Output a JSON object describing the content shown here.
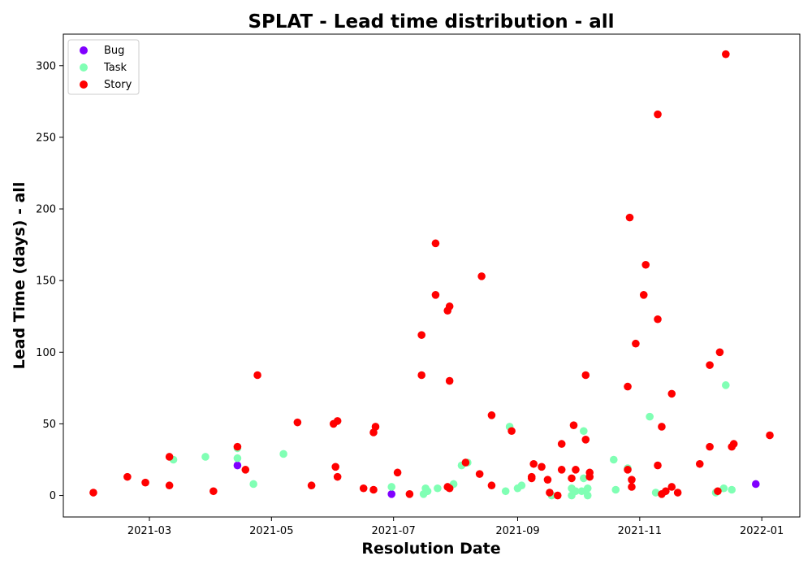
{
  "chart_data": {
    "type": "scatter",
    "title": "SPLAT - Lead time distribution - all",
    "xlabel": "Resolution Date",
    "ylabel": "Lead Time (days) - all",
    "x_ticks": [
      "2021-03",
      "2021-05",
      "2021-07",
      "2021-09",
      "2021-11",
      "2022-01"
    ],
    "y_ticks": [
      0,
      50,
      100,
      150,
      200,
      250,
      300
    ],
    "xlim": [
      "2021-01-17",
      "2022-01-20"
    ],
    "ylim": [
      -15,
      322
    ],
    "grid": false,
    "legend_position": "top-left",
    "series": [
      {
        "name": "Bug",
        "color": "#8000ff",
        "points": [
          [
            "2021-04-14",
            21
          ],
          [
            "2021-06-30",
            1
          ],
          [
            "2021-12-29",
            8
          ]
        ]
      },
      {
        "name": "Task",
        "color": "#80ffb4",
        "points": [
          [
            "2021-03-13",
            25
          ],
          [
            "2021-03-29",
            27
          ],
          [
            "2021-04-14",
            26
          ],
          [
            "2021-04-14",
            33
          ],
          [
            "2021-04-22",
            8
          ],
          [
            "2021-05-07",
            29
          ],
          [
            "2021-06-30",
            6
          ],
          [
            "2021-07-16",
            1
          ],
          [
            "2021-07-17",
            5
          ],
          [
            "2021-07-18",
            3
          ],
          [
            "2021-07-23",
            5
          ],
          [
            "2021-07-31",
            8
          ],
          [
            "2021-08-04",
            21
          ],
          [
            "2021-08-07",
            23
          ],
          [
            "2021-08-26",
            3
          ],
          [
            "2021-08-28",
            48
          ],
          [
            "2021-09-01",
            5
          ],
          [
            "2021-09-03",
            7
          ],
          [
            "2021-09-18",
            0
          ],
          [
            "2021-09-28",
            0
          ],
          [
            "2021-09-28",
            5
          ],
          [
            "2021-09-30",
            3
          ],
          [
            "2021-10-03",
            3
          ],
          [
            "2021-10-04",
            45
          ],
          [
            "2021-10-04",
            12
          ],
          [
            "2021-10-05",
            3
          ],
          [
            "2021-10-06",
            0
          ],
          [
            "2021-10-06",
            5
          ],
          [
            "2021-10-19",
            25
          ],
          [
            "2021-10-20",
            4
          ],
          [
            "2021-10-26",
            19
          ],
          [
            "2021-11-06",
            55
          ],
          [
            "2021-11-09",
            2
          ],
          [
            "2021-12-09",
            2
          ],
          [
            "2021-12-13",
            5
          ],
          [
            "2021-12-14",
            77
          ],
          [
            "2021-12-17",
            4
          ]
        ]
      },
      {
        "name": "Story",
        "color": "#ff0000",
        "points": [
          [
            "2021-02-01",
            2
          ],
          [
            "2021-02-18",
            13
          ],
          [
            "2021-02-27",
            9
          ],
          [
            "2021-03-11",
            7
          ],
          [
            "2021-03-11",
            27
          ],
          [
            "2021-04-02",
            3
          ],
          [
            "2021-04-14",
            34
          ],
          [
            "2021-04-18",
            18
          ],
          [
            "2021-04-24",
            84
          ],
          [
            "2021-05-14",
            51
          ],
          [
            "2021-05-21",
            7
          ],
          [
            "2021-06-01",
            50
          ],
          [
            "2021-06-02",
            20
          ],
          [
            "2021-06-03",
            13
          ],
          [
            "2021-06-03",
            52
          ],
          [
            "2021-06-16",
            5
          ],
          [
            "2021-06-21",
            4
          ],
          [
            "2021-06-21",
            44
          ],
          [
            "2021-06-22",
            48
          ],
          [
            "2021-07-03",
            16
          ],
          [
            "2021-07-09",
            1
          ],
          [
            "2021-07-15",
            84
          ],
          [
            "2021-07-15",
            112
          ],
          [
            "2021-07-22",
            140
          ],
          [
            "2021-07-22",
            176
          ],
          [
            "2021-07-28",
            6
          ],
          [
            "2021-07-28",
            129
          ],
          [
            "2021-07-29",
            5
          ],
          [
            "2021-07-29",
            80
          ],
          [
            "2021-07-29",
            132
          ],
          [
            "2021-08-06",
            23
          ],
          [
            "2021-08-13",
            15
          ],
          [
            "2021-08-14",
            153
          ],
          [
            "2021-08-19",
            7
          ],
          [
            "2021-08-19",
            56
          ],
          [
            "2021-08-29",
            45
          ],
          [
            "2021-09-08",
            12
          ],
          [
            "2021-09-08",
            13
          ],
          [
            "2021-09-09",
            22
          ],
          [
            "2021-09-13",
            20
          ],
          [
            "2021-09-16",
            11
          ],
          [
            "2021-09-17",
            2
          ],
          [
            "2021-09-21",
            0
          ],
          [
            "2021-09-23",
            18
          ],
          [
            "2021-09-23",
            36
          ],
          [
            "2021-09-28",
            12
          ],
          [
            "2021-09-29",
            49
          ],
          [
            "2021-09-30",
            18
          ],
          [
            "2021-10-05",
            39
          ],
          [
            "2021-10-05",
            84
          ],
          [
            "2021-10-07",
            13
          ],
          [
            "2021-10-07",
            16
          ],
          [
            "2021-10-26",
            18
          ],
          [
            "2021-10-26",
            76
          ],
          [
            "2021-10-27",
            194
          ],
          [
            "2021-10-28",
            6
          ],
          [
            "2021-10-28",
            11
          ],
          [
            "2021-10-30",
            106
          ],
          [
            "2021-11-03",
            140
          ],
          [
            "2021-11-04",
            161
          ],
          [
            "2021-11-10",
            21
          ],
          [
            "2021-11-10",
            123
          ],
          [
            "2021-11-10",
            266
          ],
          [
            "2021-11-12",
            1
          ],
          [
            "2021-11-12",
            48
          ],
          [
            "2021-11-14",
            3
          ],
          [
            "2021-11-17",
            6
          ],
          [
            "2021-11-17",
            71
          ],
          [
            "2021-11-20",
            2
          ],
          [
            "2021-12-01",
            22
          ],
          [
            "2021-12-06",
            34
          ],
          [
            "2021-12-06",
            91
          ],
          [
            "2021-12-10",
            3
          ],
          [
            "2021-12-11",
            100
          ],
          [
            "2021-12-14",
            308
          ],
          [
            "2021-12-17",
            34
          ],
          [
            "2021-12-18",
            36
          ],
          [
            "2022-01-05",
            42
          ]
        ]
      }
    ]
  }
}
